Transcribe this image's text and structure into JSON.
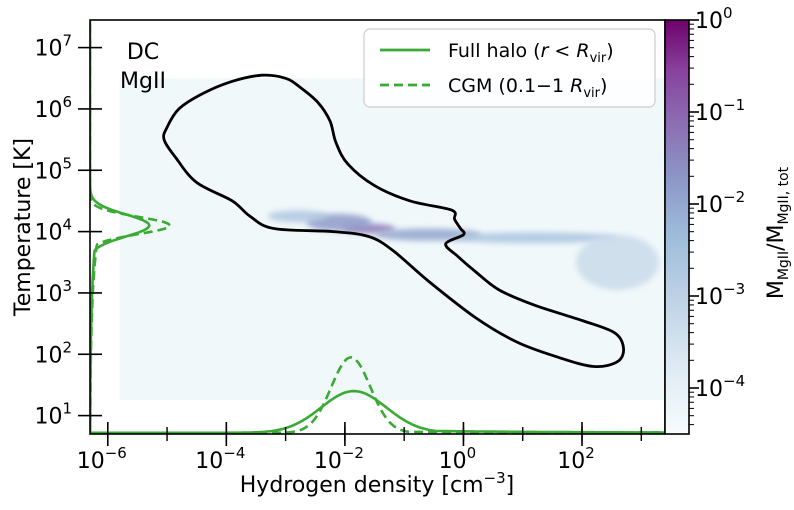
{
  "chart_data": {
    "type": "heatmap",
    "panel_label_line1": "DC",
    "panel_label_line2": "MgII",
    "xlabel": "Hydrogen density [cm",
    "xlabel_sup": "−3",
    "xlabel_end": "]",
    "ylabel": "Temperature [K]",
    "x_scale": "log",
    "y_scale": "log",
    "xlim_log10": [
      -6.3,
      3.4
    ],
    "ylim_log10": [
      0.7,
      7.45
    ],
    "x_ticks": [
      {
        "exp": -6,
        "base": "10",
        "power": "−6"
      },
      {
        "exp": -4,
        "base": "10",
        "power": "−4"
      },
      {
        "exp": -2,
        "base": "10",
        "power": "−2"
      },
      {
        "exp": 0,
        "base": "10",
        "power": "0"
      },
      {
        "exp": 2,
        "base": "10",
        "power": "2"
      }
    ],
    "y_ticks": [
      {
        "exp": 1,
        "base": "10",
        "power": "1"
      },
      {
        "exp": 2,
        "base": "10",
        "power": "2"
      },
      {
        "exp": 3,
        "base": "10",
        "power": "3"
      },
      {
        "exp": 4,
        "base": "10",
        "power": "4"
      },
      {
        "exp": 5,
        "base": "10",
        "power": "5"
      },
      {
        "exp": 6,
        "base": "10",
        "power": "6"
      },
      {
        "exp": 7,
        "base": "10",
        "power": "7"
      }
    ],
    "colorbar": {
      "label_main": "M",
      "label_sub1": "MgII",
      "label_mid": "/M",
      "label_sub2": "MgII, tot",
      "range_log10": [
        -4.5,
        0
      ],
      "ticks": [
        {
          "exp": 0,
          "base": "10",
          "power": "0"
        },
        {
          "exp": -1,
          "base": "10",
          "power": "−1"
        },
        {
          "exp": -2,
          "base": "10",
          "power": "−2"
        },
        {
          "exp": -3,
          "base": "10",
          "power": "−3"
        },
        {
          "exp": -4,
          "base": "10",
          "power": "−4"
        }
      ],
      "colors": [
        "#f7fcfd",
        "#e0ecf4",
        "#bfd3e6",
        "#9ebcda",
        "#8c96c6",
        "#8c6bb1",
        "#88419d",
        "#6e016b"
      ]
    },
    "heatmap_region_log10": {
      "x": [
        -5.8,
        3.4
      ],
      "y": [
        1.25,
        6.5
      ]
    },
    "heatmap_blobs": [
      {
        "x": -1.6,
        "y": 4.05,
        "sx": 0.45,
        "sy": 0.08,
        "log_value": -1.5
      },
      {
        "x": -2.1,
        "y": 4.15,
        "sx": 0.55,
        "sy": 0.14,
        "log_value": -2.0
      },
      {
        "x": -0.6,
        "y": 3.95,
        "sx": 0.9,
        "sy": 0.1,
        "log_value": -2.2
      },
      {
        "x": -2.8,
        "y": 4.25,
        "sx": 0.5,
        "sy": 0.1,
        "log_value": -2.9
      },
      {
        "x": 1.2,
        "y": 3.9,
        "sx": 1.4,
        "sy": 0.09,
        "log_value": -2.8
      },
      {
        "x": 2.6,
        "y": 3.5,
        "sx": 0.7,
        "sy": 0.45,
        "log_value": -3.4
      }
    ],
    "contour_log10": [
      [
        -5.0,
        5.7
      ],
      [
        -4.8,
        6.0
      ],
      [
        -4.4,
        6.25
      ],
      [
        -3.9,
        6.45
      ],
      [
        -3.4,
        6.55
      ],
      [
        -3.0,
        6.5
      ],
      [
        -2.75,
        6.35
      ],
      [
        -2.45,
        6.1
      ],
      [
        -2.25,
        5.8
      ],
      [
        -2.15,
        5.45
      ],
      [
        -1.95,
        5.1
      ],
      [
        -1.5,
        4.75
      ],
      [
        -0.9,
        4.5
      ],
      [
        -0.2,
        4.35
      ],
      [
        -0.15,
        4.2
      ],
      [
        -0.05,
        4.05
      ],
      [
        0.0,
        3.95
      ],
      [
        -0.3,
        3.8
      ],
      [
        -0.1,
        3.6
      ],
      [
        0.2,
        3.35
      ],
      [
        0.6,
        3.05
      ],
      [
        1.2,
        2.8
      ],
      [
        2.0,
        2.55
      ],
      [
        2.55,
        2.35
      ],
      [
        2.7,
        2.1
      ],
      [
        2.6,
        1.88
      ],
      [
        2.2,
        1.8
      ],
      [
        1.6,
        1.95
      ],
      [
        0.9,
        2.2
      ],
      [
        0.2,
        2.6
      ],
      [
        -0.6,
        3.2
      ],
      [
        -1.2,
        3.7
      ],
      [
        -1.6,
        3.92
      ],
      [
        -2.2,
        4.0
      ],
      [
        -3.2,
        4.05
      ],
      [
        -3.6,
        4.25
      ],
      [
        -3.9,
        4.5
      ],
      [
        -4.5,
        4.8
      ],
      [
        -4.85,
        5.2
      ],
      [
        -5.05,
        5.5
      ]
    ],
    "series": [
      {
        "name": "Full halo",
        "style": "solid",
        "color": "#3aaa35",
        "marginal_x": {
          "center_log10": -1.85,
          "width": 0.55,
          "peak_log10T": 1.4,
          "tail": 0.08
        },
        "marginal_y": {
          "center_log10": 4.1,
          "width": 0.18,
          "peak_log10n": -5.3
        }
      },
      {
        "name": "CGM",
        "style": "dashed",
        "color": "#3aaa35",
        "marginal_x": {
          "center_log10": -1.9,
          "width": 0.33,
          "peak_log10T": 1.95,
          "tail": 0.02
        },
        "marginal_y": {
          "center_log10": 4.1,
          "width": 0.14,
          "peak_log10n": -4.95
        }
      }
    ],
    "legend": {
      "position": "top-right",
      "entries": [
        {
          "label_main": "Full halo (",
          "label_r": "r",
          "label_lt": " < ",
          "label_R": "R",
          "label_sub": "vir",
          "label_end": ")"
        },
        {
          "label_main": "CGM (0.1−1 ",
          "label_r": "",
          "label_lt": "",
          "label_R": "R",
          "label_sub": "vir",
          "label_end": ")"
        }
      ]
    }
  }
}
